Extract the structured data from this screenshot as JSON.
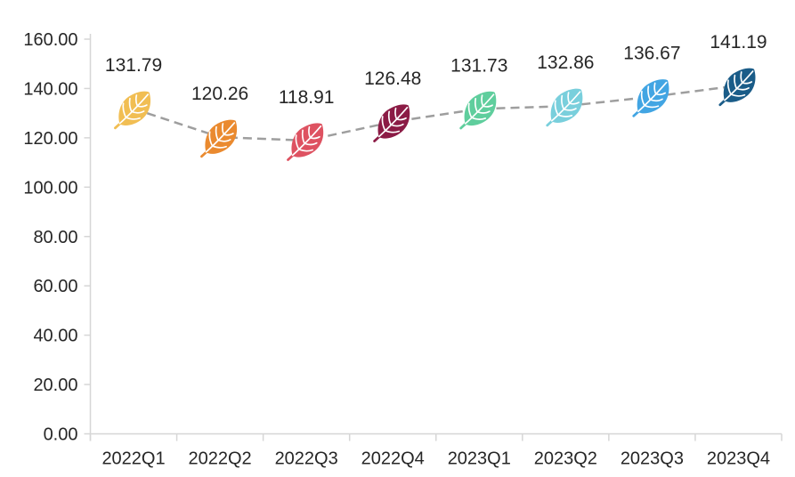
{
  "chart_data": {
    "type": "line",
    "title": "",
    "xlabel": "",
    "ylabel": "",
    "categories": [
      "2022Q1",
      "2022Q2",
      "2022Q3",
      "2022Q4",
      "2023Q1",
      "2023Q2",
      "2023Q3",
      "2023Q4"
    ],
    "values": [
      131.79,
      120.26,
      118.91,
      126.48,
      131.73,
      132.86,
      136.67,
      141.19
    ],
    "value_labels": [
      "131.79",
      "120.26",
      "118.91",
      "126.48",
      "131.73",
      "132.86",
      "136.67",
      "141.19"
    ],
    "ylim": [
      0,
      160
    ],
    "ytick_step": 20,
    "ytick_labels": [
      "0.00",
      "20.00",
      "40.00",
      "60.00",
      "80.00",
      "100.00",
      "120.00",
      "140.00",
      "160.00"
    ],
    "grid": false,
    "legend_position": "none",
    "series_style": {
      "line_type": "dashed",
      "line_color": "#9E9E9E",
      "marker": "leaf-icon",
      "marker_colors": [
        "#F1BE53",
        "#EA8A2F",
        "#DE5261",
        "#8B1B45",
        "#5FCE9D",
        "#79CFDC",
        "#42A5E3",
        "#1A5C88"
      ],
      "vein_color": "#FFFFFF"
    },
    "axis_color": "#D6D6D6",
    "text_color": "#262626"
  }
}
